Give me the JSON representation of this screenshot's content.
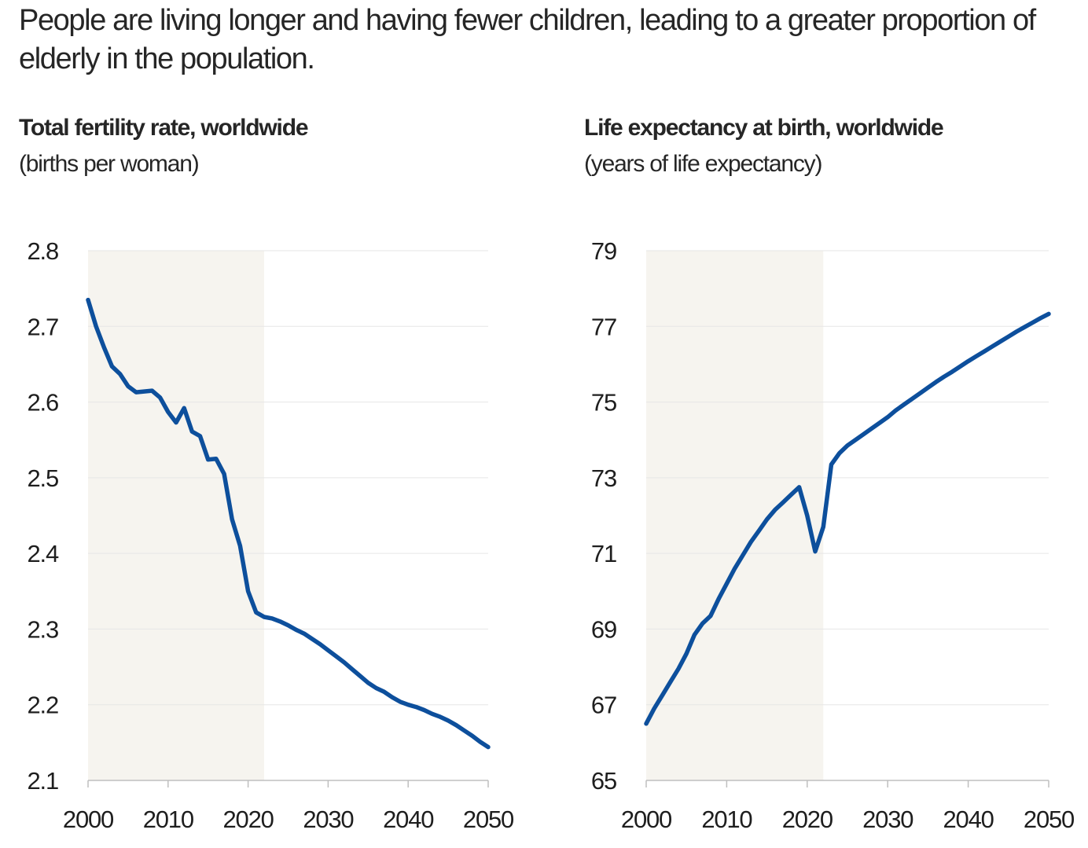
{
  "headline": "People are living longer and having fewer children, leading to a greater proportion of elderly in the population.",
  "colors": {
    "line": "#0d4f9c",
    "shade": "#f6f4ef",
    "grid": "#e6e6e6",
    "axis": "#bfbfbf"
  },
  "chart_data": [
    {
      "type": "line",
      "title": "Total fertility rate, worldwide",
      "subtitle": "(births per woman)",
      "xlim": [
        2000,
        2050
      ],
      "ylim": [
        2.1,
        2.8
      ],
      "x_ticks": [
        "2000",
        "2010",
        "2020",
        "2030",
        "2040",
        "2050"
      ],
      "y_ticks": [
        "2.8",
        "2.7",
        "2.6",
        "2.5",
        "2.4",
        "2.3",
        "2.2",
        "2.1"
      ],
      "grid": true,
      "shaded_range": [
        2000,
        2022
      ],
      "series": [
        {
          "x": [
            2000,
            2001,
            2002,
            2003,
            2004,
            2005,
            2006,
            2007,
            2008,
            2009,
            2010,
            2011,
            2012,
            2013,
            2014,
            2015,
            2016,
            2017,
            2018,
            2019,
            2020,
            2021,
            2022,
            2023,
            2024,
            2025,
            2026,
            2027,
            2028,
            2029,
            2030,
            2031,
            2032,
            2033,
            2034,
            2035,
            2036,
            2037,
            2038,
            2039,
            2040,
            2041,
            2042,
            2043,
            2044,
            2045,
            2046,
            2047,
            2048,
            2049,
            2050
          ],
          "y": [
            2.735,
            2.7,
            2.672,
            2.647,
            2.637,
            2.621,
            2.613,
            2.614,
            2.615,
            2.606,
            2.587,
            2.573,
            2.592,
            2.561,
            2.555,
            2.524,
            2.525,
            2.505,
            2.445,
            2.41,
            2.35,
            2.322,
            2.316,
            2.314,
            2.31,
            2.305,
            2.299,
            2.294,
            2.287,
            2.28,
            2.272,
            2.264,
            2.256,
            2.247,
            2.238,
            2.229,
            2.222,
            2.217,
            2.21,
            2.204,
            2.2,
            2.197,
            2.193,
            2.188,
            2.184,
            2.179,
            2.173,
            2.166,
            2.159,
            2.151,
            2.144
          ]
        }
      ]
    },
    {
      "type": "line",
      "title": "Life expectancy at birth, worldwide",
      "subtitle": "(years of life expectancy)",
      "xlim": [
        2000,
        2050
      ],
      "ylim": [
        65,
        79
      ],
      "x_ticks": [
        "2000",
        "2010",
        "2020",
        "2030",
        "2040",
        "2050"
      ],
      "y_ticks": [
        "79",
        "77",
        "75",
        "73",
        "71",
        "69",
        "67",
        "65"
      ],
      "grid": true,
      "shaded_range": [
        2000,
        2022
      ],
      "series": [
        {
          "x": [
            2000,
            2001,
            2002,
            2003,
            2004,
            2005,
            2006,
            2007,
            2008,
            2009,
            2010,
            2011,
            2012,
            2013,
            2014,
            2015,
            2016,
            2017,
            2018,
            2019,
            2020,
            2021,
            2022,
            2023,
            2024,
            2025,
            2026,
            2027,
            2028,
            2029,
            2030,
            2031,
            2032,
            2033,
            2034,
            2035,
            2036,
            2037,
            2038,
            2039,
            2040,
            2041,
            2042,
            2043,
            2044,
            2045,
            2046,
            2047,
            2048,
            2049,
            2050
          ],
          "y": [
            66.5,
            66.9,
            67.25,
            67.6,
            67.95,
            68.35,
            68.85,
            69.15,
            69.35,
            69.8,
            70.2,
            70.6,
            70.95,
            71.3,
            71.6,
            71.9,
            72.15,
            72.35,
            72.55,
            72.75,
            72.0,
            71.05,
            71.7,
            73.35,
            73.65,
            73.85,
            74.0,
            74.15,
            74.3,
            74.45,
            74.6,
            74.78,
            74.93,
            75.08,
            75.23,
            75.38,
            75.53,
            75.67,
            75.8,
            75.94,
            76.08,
            76.21,
            76.34,
            76.47,
            76.6,
            76.73,
            76.86,
            76.98,
            77.1,
            77.22,
            77.33
          ]
        }
      ]
    }
  ]
}
